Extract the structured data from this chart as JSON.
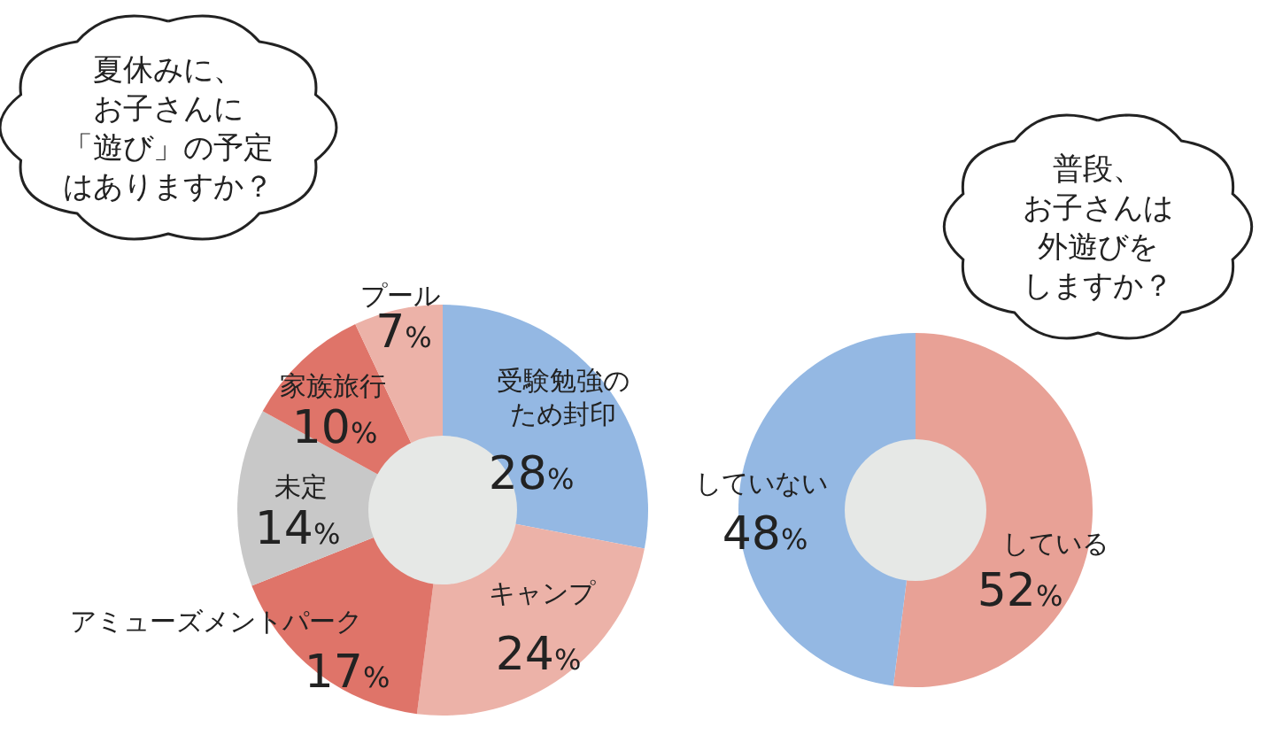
{
  "chart_data": [
    {
      "type": "donut",
      "title": "夏休みに、お子さんに「遊び」の予定はありますか？",
      "categories": [
        "受験勉強のため封印",
        "キャンプ",
        "アミューズメントパーク",
        "未定",
        "家族旅行",
        "プール"
      ],
      "values": [
        28,
        24,
        17,
        14,
        10,
        7
      ],
      "value_labels": [
        "28%",
        "24%",
        "17%",
        "14%",
        "10%",
        "7%"
      ],
      "colors": [
        "#94b8e3",
        "#ecb2a8",
        "#df7469",
        "#c8c8c8",
        "#df7469",
        "#ecb2a8"
      ]
    },
    {
      "type": "donut",
      "title": "普段、お子さんは外遊びをしますか？",
      "categories": [
        "している",
        "していない"
      ],
      "values": [
        52,
        48
      ],
      "value_labels": [
        "52%",
        "48%"
      ],
      "colors": [
        "#e8a196",
        "#94b8e3"
      ]
    }
  ]
}
